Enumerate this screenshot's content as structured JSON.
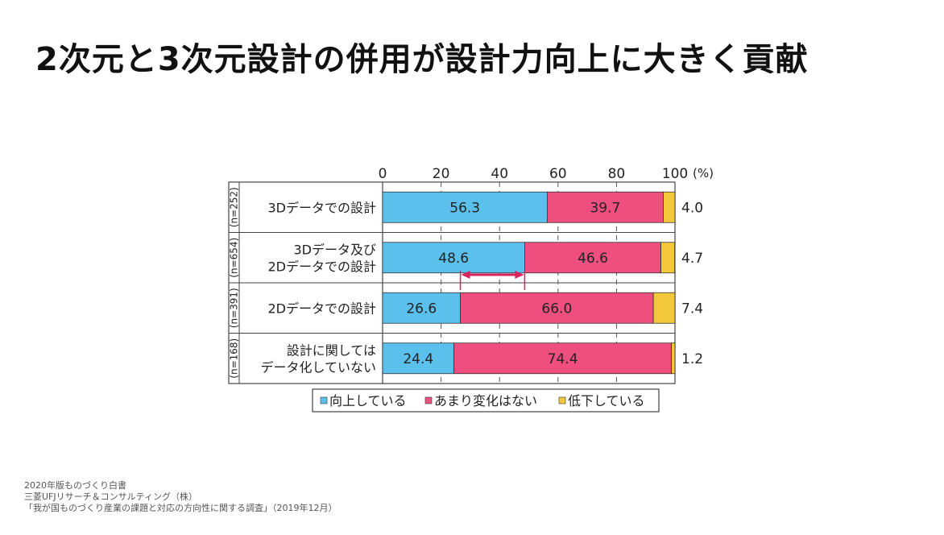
{
  "title": "2次元と3次元設計の併用が設計力向上に大きく貢献",
  "footer": {
    "line1": "2020年版ものづくり白書",
    "line2": "三菱UFJリサーチ＆コンサルティング（株）",
    "line3": "「我が国ものづくり産業の課題と対応の方向性に関する調査」（2019年12月）"
  },
  "colors": {
    "improved": "#5bc0eb",
    "unchanged": "#ef4f7e",
    "declined": "#f3c83a",
    "arrow": "#d8245c",
    "frame": "#444444",
    "grid": "#555555"
  },
  "chart_data": {
    "type": "bar",
    "orientation": "horizontal",
    "stacked": true,
    "xlim": [
      0,
      100
    ],
    "x_ticks": [
      "0",
      "20",
      "40",
      "60",
      "80",
      "100"
    ],
    "x_unit": "(%)",
    "categories": [
      {
        "label": [
          "3Dデータでの設計"
        ],
        "n": "(n=252)"
      },
      {
        "label": [
          "3Dデータ及び",
          "2Dデータでの設計"
        ],
        "n": "(n=654)"
      },
      {
        "label": [
          "2Dデータでの設計"
        ],
        "n": "(n=391)"
      },
      {
        "label": [
          "設計に関しては",
          "データ化していない"
        ],
        "n": "(n=168)"
      }
    ],
    "series": [
      {
        "name": "向上している",
        "values": [
          56.3,
          48.6,
          26.6,
          24.4
        ]
      },
      {
        "name": "あまり変化はない",
        "values": [
          39.7,
          46.6,
          66.0,
          74.4
        ]
      },
      {
        "name": "低下している",
        "values": [
          4.0,
          4.7,
          7.4,
          1.2
        ]
      }
    ],
    "value_labels": [
      [
        "56.3",
        "48.6",
        "26.6",
        "24.4"
      ],
      [
        "39.7",
        "46.6",
        "66.0",
        "74.4"
      ],
      [
        "4.0",
        "4.7",
        "7.4",
        "1.2"
      ]
    ],
    "legend_placement": "bottom",
    "grid": true,
    "annotation": {
      "type": "double-arrow",
      "between": [
        26.6,
        48.6
      ]
    }
  }
}
